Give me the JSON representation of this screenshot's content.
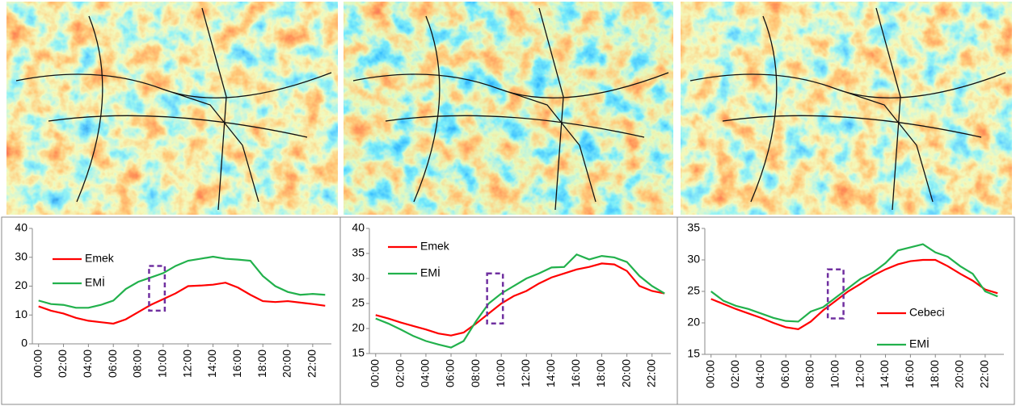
{
  "chart_data": [
    {
      "type": "line",
      "categories": [
        "00:00",
        null,
        "02:00",
        null,
        "04:00",
        null,
        "06:00",
        null,
        "08:00",
        null,
        "10:00",
        null,
        "12:00",
        null,
        "14:00",
        null,
        "16:00",
        null,
        "18:00",
        null,
        "20:00",
        null,
        "22:00",
        null
      ],
      "series": [
        {
          "name": "Emek",
          "color": "#ff0000",
          "values": [
            13,
            11.5,
            10.5,
            9,
            8,
            7.5,
            7,
            8.5,
            11,
            13.5,
            15.5,
            17.5,
            20,
            20.2,
            20.5,
            21.2,
            19.5,
            17,
            14.8,
            14.5,
            14.8,
            14.3,
            13.8,
            13.2
          ]
        },
        {
          "name": "EMİ",
          "color": "#22b14c",
          "values": [
            15,
            13.8,
            13.5,
            12.5,
            12.5,
            13.5,
            15,
            19,
            21.5,
            23,
            24.5,
            27,
            28.8,
            29.5,
            30.2,
            29.5,
            29.2,
            28.8,
            23.5,
            20,
            18,
            17,
            17.3,
            17
          ]
        }
      ],
      "ylim": [
        0,
        40
      ],
      "yticks": [
        0,
        10,
        20,
        30,
        40
      ]
    },
    {
      "type": "line",
      "categories": [
        "00:00",
        null,
        "02:00",
        null,
        "04:00",
        null,
        "06:00",
        null,
        "08:00",
        null,
        "10:00",
        null,
        "12:00",
        null,
        "14:00",
        null,
        "16:00",
        null,
        "18:00",
        null,
        "20:00",
        null,
        "22:00",
        null
      ],
      "series": [
        {
          "name": "Emek",
          "color": "#ff0000",
          "values": [
            22.7,
            22,
            21.2,
            20.5,
            19.8,
            19,
            18.6,
            19.2,
            21,
            23,
            25,
            26.5,
            27.5,
            29,
            30.2,
            31,
            31.8,
            32.3,
            33,
            32.8,
            31.5,
            28.5,
            27.5,
            27
          ]
        },
        {
          "name": "EMİ",
          "color": "#22b14c",
          "values": [
            22,
            21,
            19.8,
            18.5,
            17.5,
            16.8,
            16.2,
            17.5,
            21.5,
            25,
            27,
            28.5,
            30,
            31,
            32.2,
            32.3,
            34.8,
            33.8,
            34.5,
            34.2,
            33.3,
            30.5,
            28.5,
            27
          ]
        }
      ],
      "ylim": [
        15,
        40
      ],
      "yticks": [
        15,
        20,
        25,
        30,
        35,
        40
      ]
    },
    {
      "type": "line",
      "categories": [
        "00:00",
        null,
        "02:00",
        null,
        "04:00",
        null,
        "06:00",
        null,
        "08:00",
        null,
        "10:00",
        null,
        "12:00",
        null,
        "14:00",
        null,
        "16:00",
        null,
        "18:00",
        null,
        "20:00",
        null,
        "22:00",
        null
      ],
      "series": [
        {
          "name": "Cebeci",
          "color": "#ff0000",
          "values": [
            23.8,
            23,
            22.2,
            21.5,
            20.8,
            20,
            19.3,
            19,
            20.2,
            22,
            23.5,
            25,
            26.2,
            27.5,
            28.5,
            29.3,
            29.8,
            30,
            30,
            29,
            27.8,
            26.7,
            25.3,
            24.7
          ]
        },
        {
          "name": "EMİ",
          "color": "#22b14c",
          "values": [
            25,
            23.5,
            22.7,
            22.2,
            21.5,
            20.8,
            20.3,
            20.2,
            21.8,
            22.5,
            24,
            25.5,
            27,
            28,
            29.5,
            31.5,
            32,
            32.5,
            31.2,
            30.5,
            29,
            27.8,
            25,
            24.2
          ]
        }
      ],
      "ylim": [
        15,
        35
      ],
      "yticks": [
        15,
        20,
        25,
        30,
        35
      ]
    }
  ]
}
